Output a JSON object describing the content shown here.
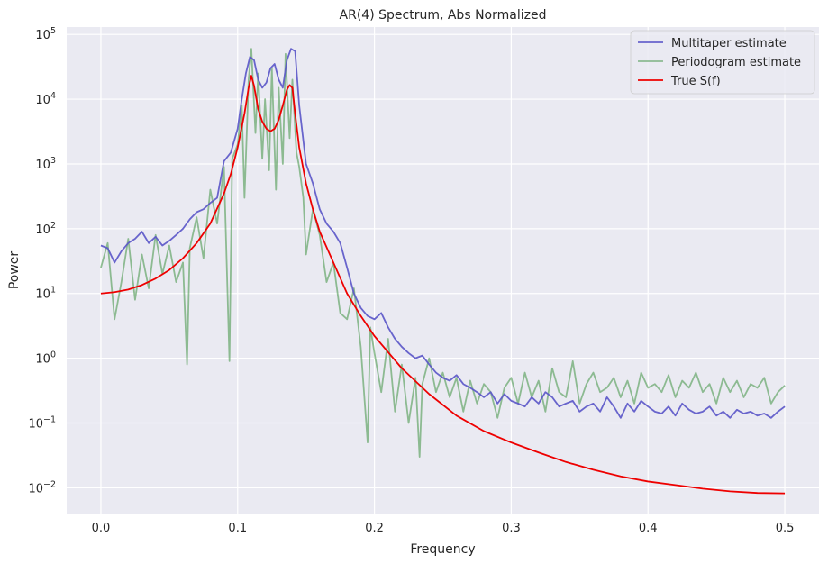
{
  "chart_data": {
    "type": "line",
    "title": "AR(4) Spectrum, Abs Normalized",
    "xlabel": "Frequency",
    "ylabel": "Power",
    "xlim": [
      -0.025,
      0.525
    ],
    "ylim": [
      0.004,
      130000
    ],
    "yscale": "log",
    "grid": true,
    "legend_position": "top-right",
    "x_ticks": [
      0.0,
      0.1,
      0.2,
      0.3,
      0.4,
      0.5
    ],
    "x_tick_labels": [
      "0.0",
      "0.1",
      "0.2",
      "0.3",
      "0.4",
      "0.5"
    ],
    "y_ticks": [
      0.01,
      0.1,
      1,
      10,
      100,
      1000,
      10000,
      100000
    ],
    "y_tick_labels": [
      {
        "base": "10",
        "exp": "−2"
      },
      {
        "base": "10",
        "exp": "−1"
      },
      {
        "base": "10",
        "exp": "0"
      },
      {
        "base": "10",
        "exp": "1"
      },
      {
        "base": "10",
        "exp": "2"
      },
      {
        "base": "10",
        "exp": "3"
      },
      {
        "base": "10",
        "exp": "4"
      },
      {
        "base": "10",
        "exp": "5"
      }
    ],
    "series": [
      {
        "name": "Periodogram estimate",
        "color": "#4c9a50",
        "opacity": 0.6,
        "x": [
          0.0,
          0.005,
          0.01,
          0.015,
          0.02,
          0.025,
          0.03,
          0.035,
          0.04,
          0.045,
          0.05,
          0.055,
          0.06,
          0.063,
          0.065,
          0.07,
          0.075,
          0.08,
          0.085,
          0.09,
          0.094,
          0.096,
          0.1,
          0.103,
          0.105,
          0.108,
          0.11,
          0.113,
          0.115,
          0.118,
          0.12,
          0.123,
          0.125,
          0.128,
          0.13,
          0.133,
          0.135,
          0.138,
          0.14,
          0.143,
          0.145,
          0.148,
          0.15,
          0.155,
          0.16,
          0.165,
          0.17,
          0.175,
          0.18,
          0.185,
          0.19,
          0.195,
          0.197,
          0.2,
          0.205,
          0.21,
          0.215,
          0.22,
          0.225,
          0.23,
          0.233,
          0.235,
          0.24,
          0.245,
          0.25,
          0.255,
          0.26,
          0.265,
          0.27,
          0.275,
          0.28,
          0.285,
          0.29,
          0.295,
          0.3,
          0.305,
          0.31,
          0.315,
          0.32,
          0.325,
          0.33,
          0.335,
          0.34,
          0.345,
          0.35,
          0.355,
          0.36,
          0.365,
          0.37,
          0.375,
          0.38,
          0.385,
          0.39,
          0.395,
          0.4,
          0.405,
          0.41,
          0.415,
          0.42,
          0.425,
          0.43,
          0.435,
          0.44,
          0.445,
          0.45,
          0.455,
          0.46,
          0.465,
          0.47,
          0.475,
          0.48,
          0.485,
          0.49,
          0.495,
          0.5
        ],
        "y": [
          25,
          60,
          4,
          15,
          70,
          8,
          40,
          12,
          80,
          20,
          55,
          15,
          30,
          0.8,
          50,
          150,
          35,
          400,
          120,
          900,
          0.9,
          1200,
          2000,
          8000,
          300,
          20000,
          60000,
          3000,
          25000,
          1200,
          10000,
          800,
          30000,
          400,
          15000,
          1000,
          50000,
          2500,
          20000,
          1500,
          900,
          300,
          40,
          200,
          80,
          15,
          30,
          5,
          4,
          12,
          1.5,
          0.05,
          3,
          1.2,
          0.3,
          2,
          0.15,
          0.8,
          0.1,
          0.5,
          0.03,
          0.4,
          1,
          0.3,
          0.6,
          0.25,
          0.5,
          0.15,
          0.45,
          0.2,
          0.4,
          0.3,
          0.12,
          0.35,
          0.5,
          0.2,
          0.6,
          0.25,
          0.45,
          0.15,
          0.7,
          0.3,
          0.25,
          0.9,
          0.2,
          0.4,
          0.6,
          0.3,
          0.35,
          0.5,
          0.25,
          0.45,
          0.2,
          0.6,
          0.35,
          0.4,
          0.3,
          0.55,
          0.25,
          0.45,
          0.35,
          0.6,
          0.3,
          0.4,
          0.2,
          0.5,
          0.3,
          0.45,
          0.25,
          0.4,
          0.35,
          0.5,
          0.2,
          0.3,
          0.38
        ]
      },
      {
        "name": "Multitaper estimate",
        "color": "#5a55c8",
        "opacity": 0.9,
        "x": [
          0.0,
          0.005,
          0.01,
          0.015,
          0.02,
          0.025,
          0.03,
          0.035,
          0.04,
          0.045,
          0.05,
          0.055,
          0.06,
          0.065,
          0.07,
          0.075,
          0.08,
          0.085,
          0.09,
          0.095,
          0.1,
          0.103,
          0.106,
          0.109,
          0.112,
          0.115,
          0.118,
          0.121,
          0.124,
          0.127,
          0.13,
          0.133,
          0.136,
          0.139,
          0.142,
          0.145,
          0.15,
          0.155,
          0.16,
          0.165,
          0.17,
          0.175,
          0.18,
          0.185,
          0.19,
          0.195,
          0.2,
          0.205,
          0.21,
          0.215,
          0.22,
          0.225,
          0.23,
          0.235,
          0.24,
          0.245,
          0.25,
          0.255,
          0.26,
          0.265,
          0.27,
          0.275,
          0.28,
          0.285,
          0.29,
          0.295,
          0.3,
          0.305,
          0.31,
          0.315,
          0.32,
          0.325,
          0.33,
          0.335,
          0.34,
          0.345,
          0.35,
          0.355,
          0.36,
          0.365,
          0.37,
          0.375,
          0.38,
          0.385,
          0.39,
          0.395,
          0.4,
          0.405,
          0.41,
          0.415,
          0.42,
          0.425,
          0.43,
          0.435,
          0.44,
          0.445,
          0.45,
          0.455,
          0.46,
          0.465,
          0.47,
          0.475,
          0.48,
          0.485,
          0.49,
          0.495,
          0.5
        ],
        "y": [
          55,
          50,
          30,
          45,
          60,
          70,
          90,
          60,
          75,
          55,
          65,
          80,
          100,
          140,
          180,
          200,
          250,
          300,
          1100,
          1500,
          3500,
          10000,
          25000,
          45000,
          40000,
          20000,
          15000,
          18000,
          30000,
          35000,
          20000,
          15000,
          40000,
          60000,
          55000,
          8000,
          1000,
          500,
          200,
          120,
          90,
          60,
          25,
          10,
          6,
          4.5,
          4,
          5,
          3,
          2,
          1.5,
          1.2,
          1,
          1.1,
          0.8,
          0.6,
          0.5,
          0.45,
          0.55,
          0.4,
          0.35,
          0.3,
          0.25,
          0.3,
          0.2,
          0.28,
          0.22,
          0.2,
          0.18,
          0.25,
          0.2,
          0.3,
          0.25,
          0.18,
          0.2,
          0.22,
          0.15,
          0.18,
          0.2,
          0.15,
          0.25,
          0.18,
          0.12,
          0.2,
          0.15,
          0.22,
          0.18,
          0.15,
          0.14,
          0.18,
          0.13,
          0.2,
          0.16,
          0.14,
          0.15,
          0.18,
          0.13,
          0.15,
          0.12,
          0.16,
          0.14,
          0.15,
          0.13,
          0.14,
          0.12,
          0.15,
          0.18
        ]
      },
      {
        "name": "True S(f)",
        "color": "#ee0000",
        "opacity": 1,
        "x": [
          0.0,
          0.01,
          0.02,
          0.03,
          0.04,
          0.05,
          0.06,
          0.07,
          0.08,
          0.09,
          0.095,
          0.1,
          0.105,
          0.108,
          0.11,
          0.112,
          0.115,
          0.118,
          0.121,
          0.124,
          0.127,
          0.13,
          0.133,
          0.136,
          0.138,
          0.14,
          0.142,
          0.145,
          0.15,
          0.155,
          0.16,
          0.17,
          0.18,
          0.19,
          0.2,
          0.22,
          0.24,
          0.26,
          0.28,
          0.3,
          0.32,
          0.34,
          0.36,
          0.38,
          0.4,
          0.42,
          0.44,
          0.46,
          0.48,
          0.5
        ],
        "y": [
          10,
          10.5,
          11.5,
          13.5,
          17,
          23,
          35,
          60,
          120,
          350,
          700,
          1800,
          6000,
          15000,
          23000,
          16000,
          7000,
          4500,
          3500,
          3200,
          3500,
          4800,
          8000,
          14000,
          16500,
          15000,
          6000,
          1800,
          500,
          200,
          90,
          30,
          10,
          4.5,
          2.2,
          0.7,
          0.28,
          0.13,
          0.075,
          0.05,
          0.035,
          0.025,
          0.019,
          0.015,
          0.0125,
          0.011,
          0.0097,
          0.0088,
          0.0083,
          0.0082
        ]
      }
    ],
    "legend_order": [
      "Multitaper estimate",
      "Periodogram estimate",
      "True S(f)"
    ],
    "style": {
      "background": "#eaeaf2",
      "grid_color": "#ffffff"
    }
  }
}
